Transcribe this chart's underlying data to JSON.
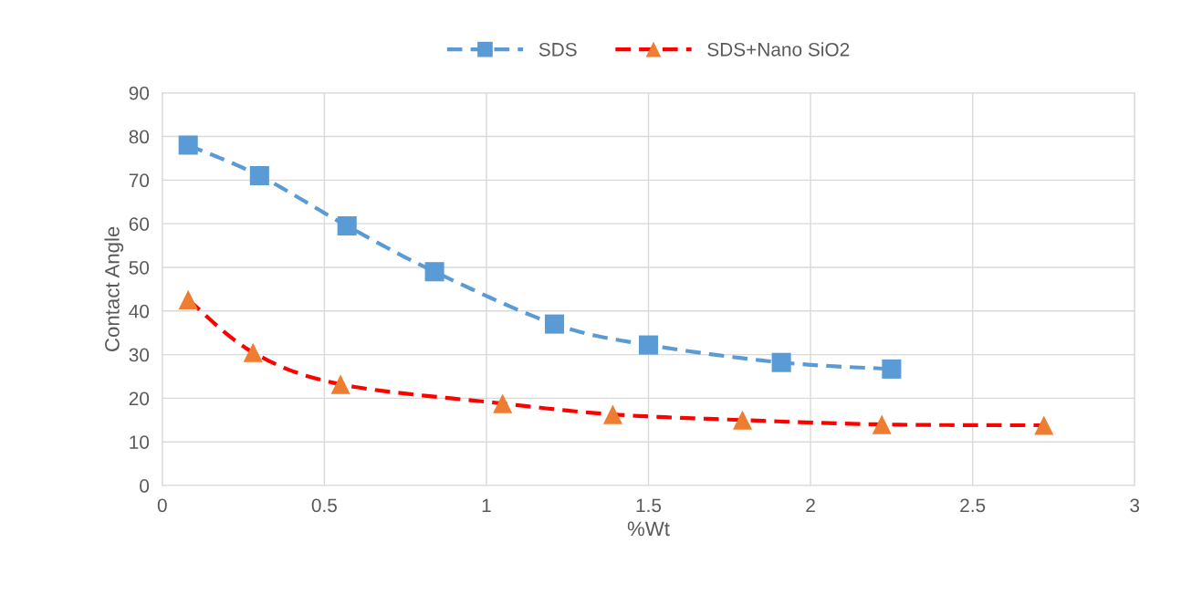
{
  "chart_data": {
    "type": "line",
    "xlabel": "%Wt",
    "ylabel": "Contact Angle",
    "xlim": [
      0,
      3
    ],
    "xticks": [
      0,
      0.5,
      1,
      1.5,
      2,
      2.5,
      3
    ],
    "ylim": [
      0,
      90
    ],
    "yticks": [
      0,
      10,
      20,
      30,
      40,
      50,
      60,
      70,
      80,
      90
    ],
    "grid": true,
    "legend": "top",
    "line_style": "dashed",
    "series": [
      {
        "name": "SDS",
        "color": "#5b9bd5",
        "marker": "square",
        "x": [
          0.08,
          0.3,
          0.57,
          0.84,
          1.21,
          1.5,
          1.91,
          2.25
        ],
        "values": [
          78,
          71,
          59.5,
          49,
          37,
          32.2,
          28.2,
          26.7
        ]
      },
      {
        "name": "SDS+Nano SiO2",
        "color": "#ff0000",
        "colors": [
          "#ed7d31",
          "#ed7d31",
          "#ed7d31",
          "#ed7d31",
          "#ed7d31",
          "#ed7d31",
          "#ed7d31",
          "#ed7d31"
        ],
        "marker": "triangle",
        "x": [
          0.08,
          0.28,
          0.55,
          1.05,
          1.39,
          1.79,
          2.22,
          2.72
        ],
        "values": [
          42.6,
          30.5,
          23.2,
          18.8,
          16.3,
          15,
          14,
          13.8
        ]
      }
    ]
  }
}
